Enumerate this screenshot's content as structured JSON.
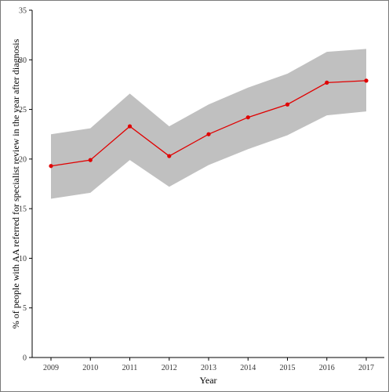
{
  "chart_data": {
    "type": "line",
    "title": "",
    "xlabel": "Year",
    "ylabel": "% of people with AA referred for specialist review in the year after diagnosis",
    "x": [
      "2009",
      "2010",
      "2011",
      "2012",
      "2013",
      "2014",
      "2015",
      "2016",
      "2017"
    ],
    "series": [
      {
        "values": [
          19.3,
          19.9,
          23.3,
          20.3,
          22.5,
          24.2,
          25.5,
          27.7,
          27.9
        ],
        "lower": [
          16.0,
          16.6,
          19.9,
          17.2,
          19.4,
          21.0,
          22.4,
          24.4,
          24.8
        ],
        "upper": [
          22.5,
          23.1,
          26.6,
          23.3,
          25.5,
          27.2,
          28.6,
          30.8,
          31.1
        ],
        "color": "#e00000",
        "band_color": "#c0c0c0"
      }
    ],
    "ylim": [
      0,
      35
    ],
    "yticks": [
      "0",
      "5",
      "10",
      "15",
      "20",
      "25",
      "30",
      "35"
    ],
    "grid": false,
    "legend": "none"
  }
}
